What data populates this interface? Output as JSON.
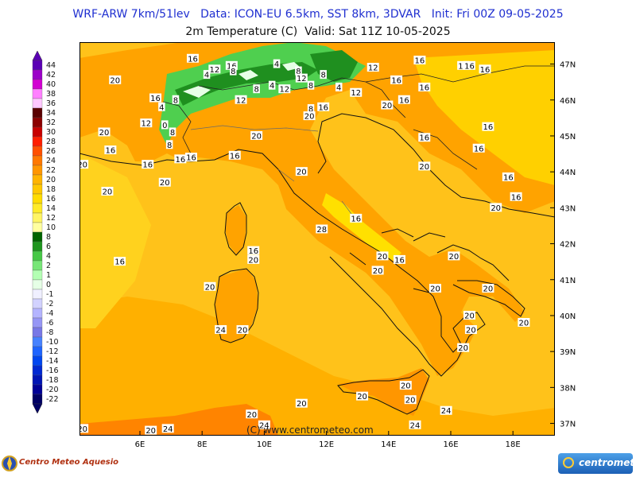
{
  "header": {
    "title_line1": "WRF-ARW 7km/51lev   Data: ICON-EU 6.5km, SST 8km, 3DVAR   Init: Fri 00Z 09-05-2025",
    "title_line2": "2m Temperature (C)  Valid: Sat 11Z 10-05-2025"
  },
  "map": {
    "copyright": "(C) www.centrometeo.com",
    "lon_labels": [
      {
        "text": "6E",
        "lon": 6
      },
      {
        "text": "8E",
        "lon": 8
      },
      {
        "text": "10E",
        "lon": 10
      },
      {
        "text": "12E",
        "lon": 12
      },
      {
        "text": "14E",
        "lon": 14
      },
      {
        "text": "16E",
        "lon": 16
      },
      {
        "text": "18E",
        "lon": 18
      }
    ],
    "lat_labels": [
      {
        "text": "47N",
        "lat": 47
      },
      {
        "text": "46N",
        "lat": 46
      },
      {
        "text": "45N",
        "lat": 45
      },
      {
        "text": "44N",
        "lat": 44
      },
      {
        "text": "43N",
        "lat": 43
      },
      {
        "text": "42N",
        "lat": 42
      },
      {
        "text": "41N",
        "lat": 41
      },
      {
        "text": "40N",
        "lat": 40
      },
      {
        "text": "39N",
        "lat": 39
      },
      {
        "text": "38N",
        "lat": 38
      },
      {
        "text": "37N",
        "lat": 37
      }
    ],
    "contour_labels": [
      {
        "t": "16",
        "lon": 7.7,
        "lat": 47.15
      },
      {
        "t": "16",
        "lon": 8.95,
        "lat": 46.95
      },
      {
        "t": "12",
        "lon": 8.4,
        "lat": 46.85
      },
      {
        "t": "4",
        "lon": 8.15,
        "lat": 46.7
      },
      {
        "t": "8",
        "lon": 9.0,
        "lat": 46.8
      },
      {
        "t": "4",
        "lon": 10.4,
        "lat": 47.0
      },
      {
        "t": "8",
        "lon": 11.1,
        "lat": 46.8
      },
      {
        "t": "12",
        "lon": 11.2,
        "lat": 46.6
      },
      {
        "t": "8",
        "lon": 11.9,
        "lat": 46.7
      },
      {
        "t": "12",
        "lon": 13.5,
        "lat": 46.9
      },
      {
        "t": "16",
        "lon": 15.0,
        "lat": 47.1
      },
      {
        "t": "16",
        "lon": 16.4,
        "lat": 46.95
      },
      {
        "t": "16",
        "lon": 17.1,
        "lat": 46.85
      },
      {
        "t": "16",
        "lon": 16.6,
        "lat": 46.95
      },
      {
        "t": "20",
        "lon": 5.2,
        "lat": 46.55
      },
      {
        "t": "16",
        "lon": 14.25,
        "lat": 46.55
      },
      {
        "t": "16",
        "lon": 15.15,
        "lat": 46.35
      },
      {
        "t": "8",
        "lon": 9.75,
        "lat": 46.3
      },
      {
        "t": "4",
        "lon": 10.25,
        "lat": 46.4
      },
      {
        "t": "12",
        "lon": 10.65,
        "lat": 46.3
      },
      {
        "t": "8",
        "lon": 11.5,
        "lat": 46.4
      },
      {
        "t": "4",
        "lon": 12.4,
        "lat": 46.35
      },
      {
        "t": "12",
        "lon": 12.95,
        "lat": 46.2
      },
      {
        "t": "16",
        "lon": 6.5,
        "lat": 46.05
      },
      {
        "t": "8",
        "lon": 7.15,
        "lat": 46.0
      },
      {
        "t": "12",
        "lon": 9.25,
        "lat": 46.0
      },
      {
        "t": "16",
        "lon": 14.5,
        "lat": 46.0
      },
      {
        "t": "4",
        "lon": 6.7,
        "lat": 45.8
      },
      {
        "t": "16",
        "lon": 11.9,
        "lat": 45.8
      },
      {
        "t": "8",
        "lon": 11.5,
        "lat": 45.75
      },
      {
        "t": "20",
        "lon": 13.95,
        "lat": 45.85
      },
      {
        "t": "12",
        "lon": 6.2,
        "lat": 45.35
      },
      {
        "t": "0",
        "lon": 6.8,
        "lat": 45.3
      },
      {
        "t": "8",
        "lon": 7.05,
        "lat": 45.1
      },
      {
        "t": "20",
        "lon": 11.45,
        "lat": 45.55
      },
      {
        "t": "20",
        "lon": 4.85,
        "lat": 45.1
      },
      {
        "t": "16",
        "lon": 17.2,
        "lat": 45.25
      },
      {
        "t": "20",
        "lon": 9.75,
        "lat": 45.0
      },
      {
        "t": "16",
        "lon": 15.15,
        "lat": 44.95
      },
      {
        "t": "16",
        "lon": 5.05,
        "lat": 44.6
      },
      {
        "t": "8",
        "lon": 6.95,
        "lat": 44.75
      },
      {
        "t": "16",
        "lon": 16.9,
        "lat": 44.65
      },
      {
        "t": "16",
        "lon": 6.25,
        "lat": 44.2
      },
      {
        "t": "16",
        "lon": 7.3,
        "lat": 44.35
      },
      {
        "t": "16",
        "lon": 7.65,
        "lat": 44.4
      },
      {
        "t": "16",
        "lon": 9.05,
        "lat": 44.45
      },
      {
        "t": "20",
        "lon": 4.15,
        "lat": 44.2
      },
      {
        "t": "20",
        "lon": 15.15,
        "lat": 44.15
      },
      {
        "t": "20",
        "lon": 11.2,
        "lat": 44.0
      },
      {
        "t": "16",
        "lon": 17.85,
        "lat": 43.85
      },
      {
        "t": "20",
        "lon": 6.8,
        "lat": 43.7
      },
      {
        "t": "20",
        "lon": 4.95,
        "lat": 43.45
      },
      {
        "t": "16",
        "lon": 18.1,
        "lat": 43.3
      },
      {
        "t": "20",
        "lon": 17.45,
        "lat": 43.0
      },
      {
        "t": "16",
        "lon": 12.95,
        "lat": 42.7
      },
      {
        "t": "28",
        "lon": 11.85,
        "lat": 42.4
      },
      {
        "t": "16",
        "lon": 9.65,
        "lat": 41.8
      },
      {
        "t": "16",
        "lon": 5.35,
        "lat": 41.5
      },
      {
        "t": "20",
        "lon": 9.65,
        "lat": 41.55
      },
      {
        "t": "20",
        "lon": 13.8,
        "lat": 41.65
      },
      {
        "t": "16",
        "lon": 14.35,
        "lat": 41.55
      },
      {
        "t": "20",
        "lon": 16.1,
        "lat": 41.65
      },
      {
        "t": "20",
        "lon": 13.65,
        "lat": 41.25
      },
      {
        "t": "20",
        "lon": 8.25,
        "lat": 40.8
      },
      {
        "t": "20",
        "lon": 15.5,
        "lat": 40.75
      },
      {
        "t": "20",
        "lon": 17.2,
        "lat": 40.75
      },
      {
        "t": "20",
        "lon": 16.6,
        "lat": 40.0
      },
      {
        "t": "20",
        "lon": 18.35,
        "lat": 39.8
      },
      {
        "t": "24",
        "lon": 8.6,
        "lat": 39.6
      },
      {
        "t": "20",
        "lon": 9.3,
        "lat": 39.6
      },
      {
        "t": "20",
        "lon": 16.65,
        "lat": 39.6
      },
      {
        "t": "20",
        "lon": 16.4,
        "lat": 39.1
      },
      {
        "t": "20",
        "lon": 14.55,
        "lat": 38.05
      },
      {
        "t": "20",
        "lon": 13.15,
        "lat": 37.75
      },
      {
        "t": "20",
        "lon": 14.7,
        "lat": 37.65
      },
      {
        "t": "20",
        "lon": 11.2,
        "lat": 37.55
      },
      {
        "t": "24",
        "lon": 15.85,
        "lat": 37.35
      },
      {
        "t": "20",
        "lon": 9.6,
        "lat": 37.25
      },
      {
        "t": "24",
        "lon": 10.0,
        "lat": 36.95
      },
      {
        "t": "24",
        "lon": 14.85,
        "lat": 36.95
      },
      {
        "t": "20",
        "lon": 4.15,
        "lat": 36.85
      },
      {
        "t": "20",
        "lon": 6.35,
        "lat": 36.8
      },
      {
        "t": "24",
        "lon": 6.9,
        "lat": 36.85
      }
    ]
  },
  "legend": {
    "unit": "C",
    "items": [
      {
        "label": "44",
        "color": "#5a00b4"
      },
      {
        "label": "42",
        "color": "#9b00c8"
      },
      {
        "label": "40",
        "color": "#d200d2"
      },
      {
        "label": "38",
        "color": "#ff80ff"
      },
      {
        "label": "36",
        "color": "#ffc8ff"
      },
      {
        "label": "34",
        "color": "#5a0000"
      },
      {
        "label": "32",
        "color": "#8c0000"
      },
      {
        "label": "30",
        "color": "#c80000"
      },
      {
        "label": "28",
        "color": "#ff1e00"
      },
      {
        "label": "26",
        "color": "#ff5000"
      },
      {
        "label": "24",
        "color": "#ff7800"
      },
      {
        "label": "22",
        "color": "#ff9600"
      },
      {
        "label": "20",
        "color": "#ffb400"
      },
      {
        "label": "18",
        "color": "#ffc800"
      },
      {
        "label": "16",
        "color": "#ffdc00"
      },
      {
        "label": "14",
        "color": "#ffeb28"
      },
      {
        "label": "12",
        "color": "#fff564"
      },
      {
        "label": "10",
        "color": "#ffffa0"
      },
      {
        "label": "8",
        "color": "#006400"
      },
      {
        "label": "6",
        "color": "#1e961e"
      },
      {
        "label": "4",
        "color": "#46c846"
      },
      {
        "label": "2",
        "color": "#78e678"
      },
      {
        "label": "1",
        "color": "#b4ffb4"
      },
      {
        "label": "0",
        "color": "#e6ffe6"
      },
      {
        "label": "-1",
        "color": "#f0f0ff"
      },
      {
        "label": "-2",
        "color": "#d2d2ff"
      },
      {
        "label": "-4",
        "color": "#b4b4ff"
      },
      {
        "label": "-6",
        "color": "#9696f5"
      },
      {
        "label": "-8",
        "color": "#7878e6"
      },
      {
        "label": "-10",
        "color": "#4682ff"
      },
      {
        "label": "-12",
        "color": "#1e64ff"
      },
      {
        "label": "-14",
        "color": "#0046f0"
      },
      {
        "label": "-16",
        "color": "#0028d2"
      },
      {
        "label": "-18",
        "color": "#0014b4"
      },
      {
        "label": "-20",
        "color": "#000096"
      },
      {
        "label": "-22",
        "color": "#000064"
      }
    ]
  },
  "brand": {
    "left": "Centro Meteo Aquesio",
    "right": "centrometeo"
  }
}
